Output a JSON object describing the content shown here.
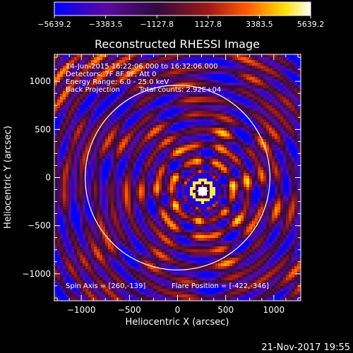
{
  "chart_data": {
    "type": "heatmap",
    "title": "Reconstructed RHESSI Image",
    "xlabel": "Heliocentric X (arcsec)",
    "ylabel": "Heliocentric Y (arcsec)",
    "xlim": [
      -1280,
      1280
    ],
    "ylim": [
      -1280,
      1280
    ],
    "xticks": [
      -1000,
      -500,
      0,
      500,
      1000
    ],
    "yticks": [
      -1000,
      -500,
      0,
      500,
      1000
    ],
    "colorbar": {
      "range": [
        -5639.2,
        5639.2
      ],
      "ticks": [
        -5639.2,
        -3383.5,
        -1127.8,
        1127.8,
        3383.5,
        5639.2
      ],
      "tick_labels": [
        "−5639.2",
        "−3383.5",
        "−1127.8",
        "1127.8",
        "3383.5",
        "5639.2"
      ],
      "colors": [
        "#0000ff",
        "#5a0aa0",
        "#300a40",
        "#a01818",
        "#ff5a00",
        "#ffe000",
        "#ffffff"
      ]
    },
    "annotations": [
      "14-Jun-2015 16:22:06.000 to 16:32:06.000",
      "Detectors: 7F 8F 9F, Att 0",
      "Energy Range: 6.0 - 25.0 keV",
      "Back Projection",
      "Total counts: 2.92E+04",
      "Spin Axis = [260,-139]",
      "Flare Position = [-422,-346]"
    ],
    "spin_axis": [
      260,
      -139
    ],
    "flare_position": [
      -422,
      -346
    ],
    "solar_limb_radius_arcsec": 960,
    "source": {
      "x": 260,
      "y": -139
    }
  },
  "footer_date": "21-Nov-2017 19:55"
}
